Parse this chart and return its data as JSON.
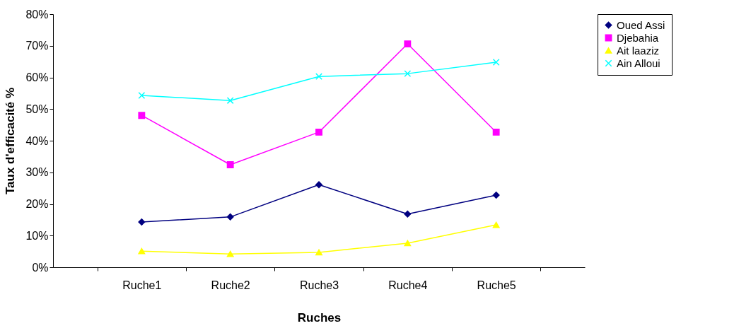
{
  "chart_data": {
    "type": "line",
    "xlabel": "Ruches",
    "ylabel": "Taux d'efficacité %",
    "categories": [
      "Ruche1",
      "Ruche2",
      "Ruche3",
      "Ruche4",
      "Ruche5"
    ],
    "series": [
      {
        "name": "Oued Assi",
        "color": "#000080",
        "marker": "diamond",
        "values": [
          14.3,
          15.9,
          26.1,
          16.8,
          22.8
        ]
      },
      {
        "name": "Djebahia",
        "color": "#ff00ff",
        "marker": "square",
        "values": [
          48,
          32.4,
          42.7,
          70.6,
          42.7
        ]
      },
      {
        "name": "Ait laaziz",
        "color": "#ffff00",
        "marker": "triangle",
        "values": [
          5.1,
          4.2,
          4.7,
          7.6,
          13.4
        ]
      },
      {
        "name": "Ain Alloui",
        "color": "#00ffff",
        "marker": "cross",
        "values": [
          54.3,
          52.7,
          60.3,
          61.2,
          64.8
        ]
      }
    ],
    "ylim": [
      0,
      80
    ],
    "yticks": [
      {
        "value": 0,
        "label": "0%"
      },
      {
        "value": 10,
        "label": "10%"
      },
      {
        "value": 20,
        "label": "20%"
      },
      {
        "value": 30,
        "label": "30%"
      },
      {
        "value": 40,
        "label": "40%"
      },
      {
        "value": 50,
        "label": "50%"
      },
      {
        "value": 60,
        "label": "60%"
      },
      {
        "value": 70,
        "label": "70%"
      },
      {
        "value": 80,
        "label": "80%"
      }
    ],
    "legend": "right"
  }
}
